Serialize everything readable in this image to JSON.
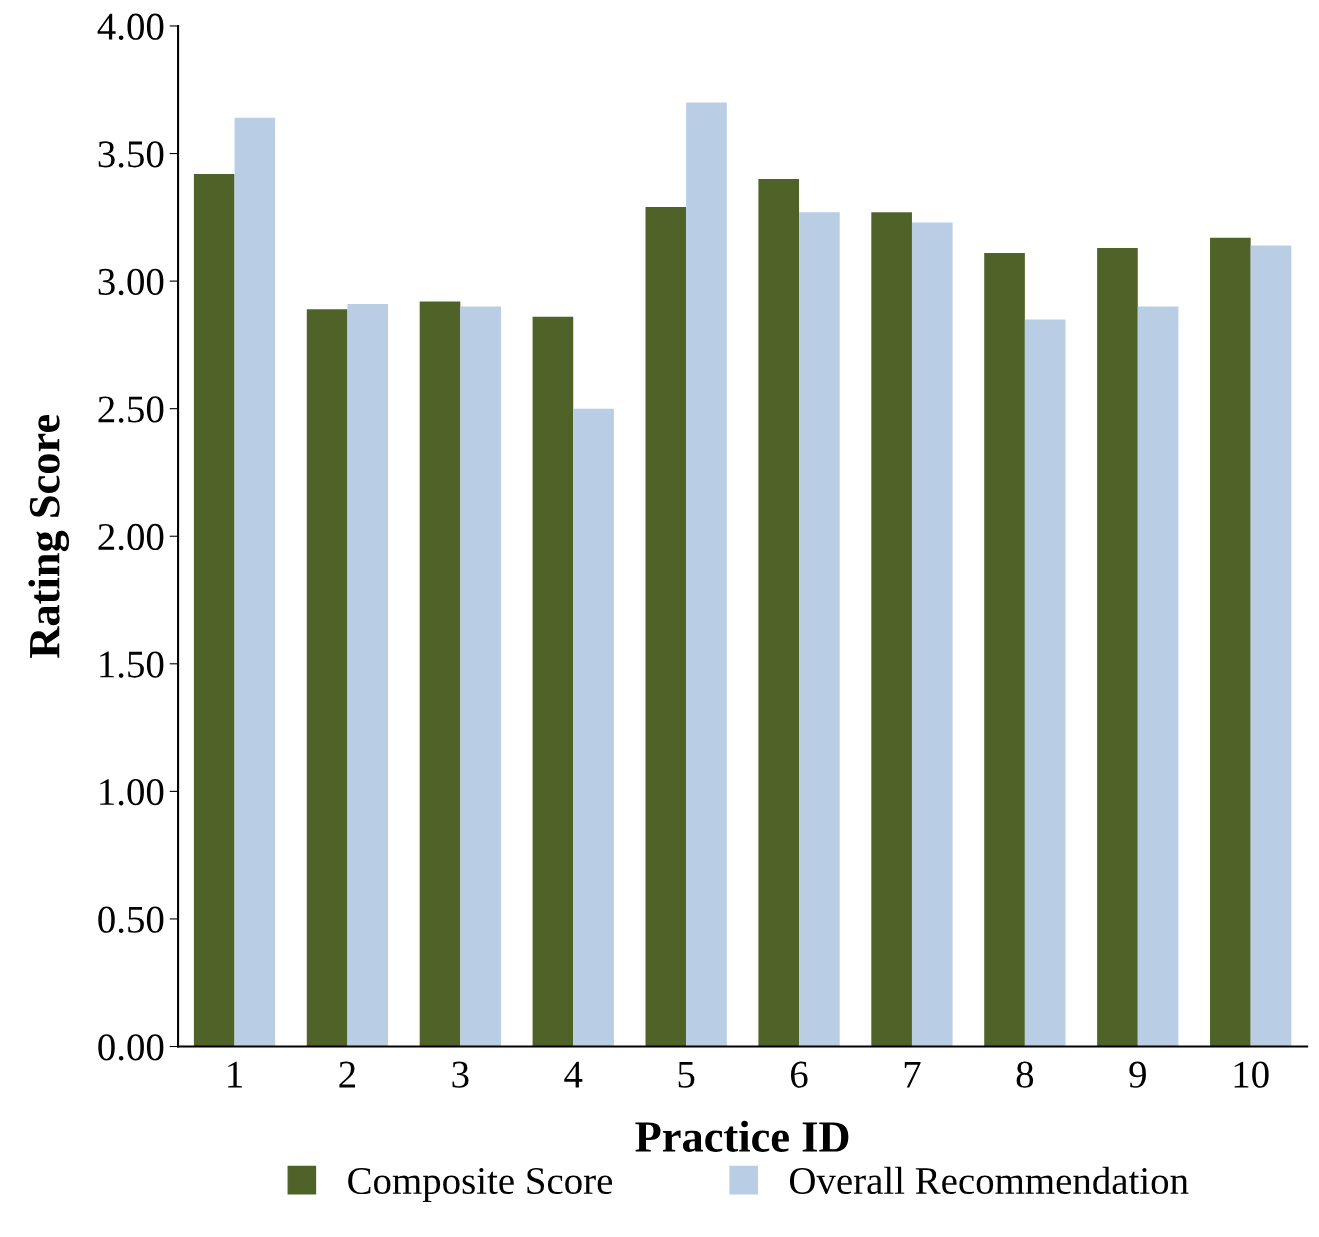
{
  "chart_data": {
    "type": "bar",
    "xlabel": "Practice ID",
    "ylabel": "Rating Score",
    "categories": [
      "1",
      "2",
      "3",
      "4",
      "5",
      "6",
      "7",
      "8",
      "9",
      "10"
    ],
    "series": [
      {
        "name": "Composite Score",
        "color": "#4f6228",
        "values": [
          3.42,
          2.89,
          2.92,
          2.86,
          3.29,
          3.4,
          3.27,
          3.11,
          3.13,
          3.17
        ]
      },
      {
        "name": "Overall Recommendation",
        "color": "#b9cde5",
        "values": [
          3.64,
          2.91,
          2.9,
          2.5,
          3.7,
          3.27,
          3.23,
          2.85,
          2.9,
          3.14
        ]
      }
    ],
    "ylim": [
      0,
      4
    ],
    "yticks": [
      {
        "value": 0,
        "label": "0.00"
      },
      {
        "value": 0.5,
        "label": "0.50"
      },
      {
        "value": 1,
        "label": "1.00"
      },
      {
        "value": 1.5,
        "label": "1.50"
      },
      {
        "value": 2,
        "label": "2.00"
      },
      {
        "value": 2.5,
        "label": "2.50"
      },
      {
        "value": 3,
        "label": "3.00"
      },
      {
        "value": 3.5,
        "label": "3.50"
      },
      {
        "value": 4,
        "label": "4.00"
      }
    ],
    "grid": false,
    "legend": "bottom"
  }
}
